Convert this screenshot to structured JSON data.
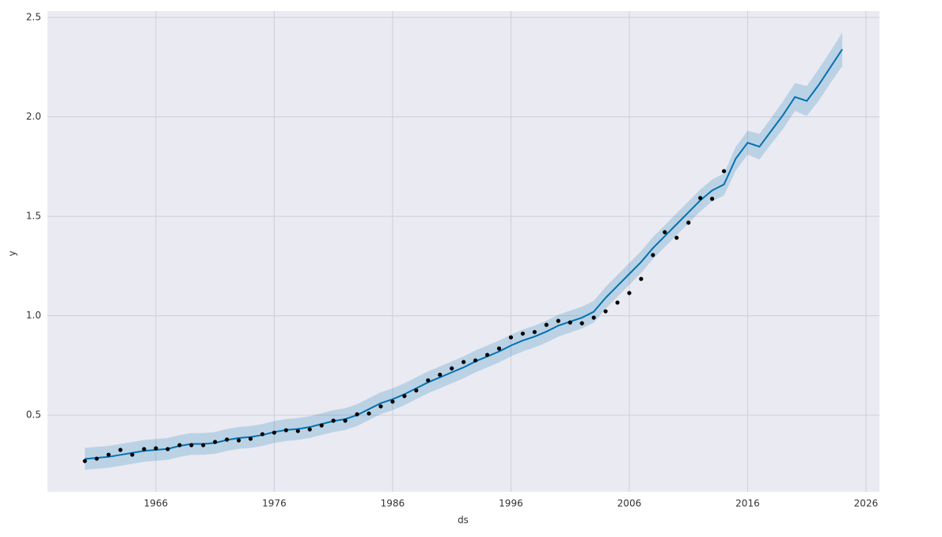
{
  "chart_data": {
    "type": "line",
    "x_label": "ds",
    "y_label": "y",
    "x": [
      1960,
      1961,
      1962,
      1963,
      1964,
      1965,
      1966,
      1967,
      1968,
      1969,
      1970,
      1971,
      1972,
      1973,
      1974,
      1975,
      1976,
      1977,
      1978,
      1979,
      1980,
      1981,
      1982,
      1983,
      1984,
      1985,
      1986,
      1987,
      1988,
      1989,
      1990,
      1991,
      1992,
      1993,
      1994,
      1995,
      1996,
      1997,
      1998,
      1999,
      2000,
      2001,
      2002,
      2003,
      2004,
      2005,
      2006,
      2007,
      2008,
      2009,
      2010,
      2011,
      2012,
      2013,
      2014,
      2015,
      2016,
      2017,
      2018,
      2019,
      2020,
      2021,
      2022,
      2023,
      2024
    ],
    "series": [
      {
        "color": "#0072B2",
        "band_color": "#0072B2",
        "values": [
          0.28,
          0.285,
          0.29,
          0.3,
          0.31,
          0.32,
          0.325,
          0.33,
          0.345,
          0.355,
          0.355,
          0.36,
          0.375,
          0.385,
          0.39,
          0.4,
          0.415,
          0.425,
          0.43,
          0.44,
          0.455,
          0.47,
          0.48,
          0.5,
          0.53,
          0.56,
          0.58,
          0.605,
          0.635,
          0.665,
          0.69,
          0.715,
          0.74,
          0.77,
          0.795,
          0.82,
          0.85,
          0.875,
          0.895,
          0.92,
          0.95,
          0.97,
          0.99,
          1.02,
          1.09,
          1.15,
          1.21,
          1.27,
          1.34,
          1.4,
          1.46,
          1.52,
          1.58,
          1.63,
          1.66,
          1.79,
          1.87,
          1.85,
          1.93,
          2.01,
          2.1,
          2.08,
          2.16,
          2.25,
          2.34
        ],
        "lower": [
          0.225,
          0.23,
          0.235,
          0.245,
          0.255,
          0.265,
          0.27,
          0.275,
          0.29,
          0.3,
          0.3,
          0.305,
          0.32,
          0.33,
          0.335,
          0.345,
          0.36,
          0.37,
          0.375,
          0.385,
          0.4,
          0.415,
          0.425,
          0.445,
          0.475,
          0.505,
          0.525,
          0.55,
          0.58,
          0.61,
          0.635,
          0.66,
          0.685,
          0.715,
          0.74,
          0.765,
          0.795,
          0.82,
          0.84,
          0.865,
          0.895,
          0.915,
          0.935,
          0.965,
          1.035,
          1.095,
          1.155,
          1.215,
          1.285,
          1.345,
          1.405,
          1.465,
          1.525,
          1.575,
          1.605,
          1.73,
          1.81,
          1.785,
          1.865,
          1.94,
          2.03,
          2.005,
          2.08,
          2.17,
          2.255
        ],
        "upper": [
          0.335,
          0.34,
          0.345,
          0.355,
          0.365,
          0.375,
          0.38,
          0.385,
          0.4,
          0.41,
          0.41,
          0.415,
          0.43,
          0.44,
          0.445,
          0.455,
          0.47,
          0.48,
          0.485,
          0.495,
          0.51,
          0.525,
          0.535,
          0.555,
          0.585,
          0.615,
          0.635,
          0.66,
          0.69,
          0.72,
          0.745,
          0.77,
          0.795,
          0.825,
          0.85,
          0.875,
          0.905,
          0.93,
          0.95,
          0.975,
          1.005,
          1.025,
          1.045,
          1.075,
          1.145,
          1.205,
          1.265,
          1.325,
          1.395,
          1.455,
          1.515,
          1.575,
          1.635,
          1.685,
          1.715,
          1.85,
          1.93,
          1.915,
          1.995,
          2.08,
          2.17,
          2.155,
          2.24,
          2.33,
          2.425
        ]
      }
    ],
    "points": {
      "type": "scatter",
      "color": "#000000",
      "x": [
        1960,
        1961,
        1962,
        1963,
        1964,
        1965,
        1966,
        1967,
        1968,
        1969,
        1970,
        1971,
        1972,
        1973,
        1974,
        1975,
        1976,
        1977,
        1978,
        1979,
        1980,
        1981,
        1982,
        1983,
        1984,
        1985,
        1986,
        1987,
        1988,
        1989,
        1990,
        1991,
        1992,
        1993,
        1994,
        1995,
        1996,
        1997,
        1998,
        1999,
        2000,
        2001,
        2002,
        2003,
        2004,
        2005,
        2006,
        2007,
        2008,
        2009,
        2010,
        2011,
        2012,
        2013,
        2014
      ],
      "values": [
        0.269,
        0.281,
        0.301,
        0.325,
        0.301,
        0.329,
        0.333,
        0.329,
        0.349,
        0.349,
        0.349,
        0.365,
        0.377,
        0.373,
        0.381,
        0.404,
        0.412,
        0.424,
        0.42,
        0.428,
        0.448,
        0.472,
        0.472,
        0.504,
        0.508,
        0.544,
        0.568,
        0.596,
        0.624,
        0.675,
        0.703,
        0.735,
        0.767,
        0.775,
        0.803,
        0.835,
        0.891,
        0.91,
        0.918,
        0.954,
        0.974,
        0.966,
        0.962,
        0.99,
        1.022,
        1.066,
        1.114,
        1.185,
        1.305,
        1.42,
        1.392,
        1.468,
        1.592,
        1.588,
        1.727
      ]
    },
    "xlim": [
      1956.84,
      2027.14
    ],
    "ylim": [
      0.114,
      2.532
    ],
    "xticks": [
      1966,
      1976,
      1986,
      1996,
      2006,
      2016,
      2026
    ],
    "yticks": [
      0.5,
      {
        "value": 1,
        "label": "1.0"
      },
      1.5,
      {
        "value": 2,
        "label": "2.0"
      },
      2.5
    ],
    "grid": true,
    "background": "#EAEAF2"
  }
}
